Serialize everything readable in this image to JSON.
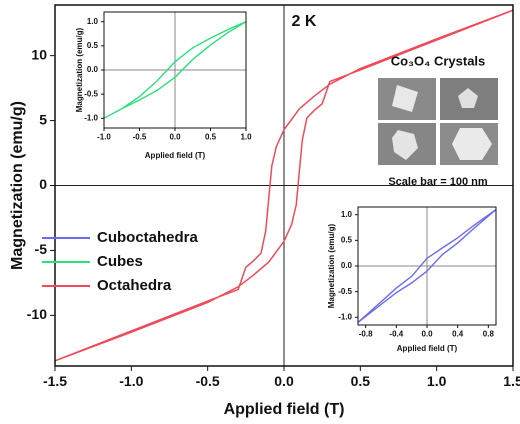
{
  "chart_data": [
    {
      "type": "line",
      "xlabel": "Applied field (T)",
      "ylabel": "Magnetization (emu/g)",
      "xlim": [
        -1.5,
        1.5
      ],
      "ylim": [
        -13.9,
        13.9
      ],
      "xticks": [
        -1.5,
        {
          "value": -1,
          "label": "-1.0"
        },
        -0.5,
        {
          "value": 0,
          "label": "0.0"
        },
        0.5,
        {
          "value": 1,
          "label": "1.0"
        },
        1.5
      ],
      "yticks": [
        -10,
        -5,
        0,
        5,
        10
      ],
      "zero_lines": true,
      "annotations": [
        "2 K",
        "Co₃O₄ Crystals",
        "Scale bar = 100 nm"
      ],
      "series": [
        {
          "name": "Octahedra",
          "color": "#f04a58",
          "x": [
            -1.5,
            -1.0,
            -0.5,
            -0.3,
            -0.2,
            -0.1,
            0,
            0.05,
            0.08,
            0.12,
            0.15,
            0.2,
            0.25,
            0.3,
            0.5,
            1.0,
            1.5,
            1.0,
            0.5,
            0.3,
            0.2,
            0.1,
            0,
            -0.05,
            -0.08,
            -0.12,
            -0.15,
            -0.2,
            -0.25,
            -0.3,
            -0.5,
            -1.0,
            -1.5
          ],
          "values": [
            -13.5,
            -11.3,
            -9.0,
            -7.8,
            -6.9,
            -5.9,
            -4.3,
            -3.0,
            -1.5,
            3.5,
            5.2,
            5.8,
            6.3,
            8.0,
            8.9,
            11.2,
            13.5,
            11.3,
            9.0,
            7.8,
            6.9,
            5.9,
            4.3,
            3.0,
            1.5,
            -3.5,
            -5.2,
            -5.8,
            -6.3,
            -8.0,
            -8.9,
            -11.2,
            -13.5
          ]
        }
      ]
    },
    {
      "type": "line",
      "xlabel": "Applied field (T)",
      "ylabel": "Magnetization (emu/g)",
      "xlim": [
        -1,
        1
      ],
      "ylim": [
        -1.2,
        1.2
      ],
      "xticks": [
        {
          "value": -1,
          "label": "-1.0"
        },
        -0.5,
        {
          "value": 0,
          "label": "0.0"
        },
        0.5,
        {
          "value": 1,
          "label": "1.0"
        }
      ],
      "yticks": [
        {
          "value": -1,
          "label": "-1.0"
        },
        -0.5,
        {
          "value": 0,
          "label": "0.0"
        },
        0.5,
        {
          "value": 1,
          "label": "1.0"
        }
      ],
      "zero_lines": true,
      "series": [
        {
          "name": "Cubes",
          "color": "#2ee07a",
          "x": [
            -1,
            -0.75,
            -0.5,
            -0.25,
            0,
            0.25,
            0.5,
            0.75,
            1,
            0.75,
            0.5,
            0.25,
            0,
            -0.25,
            -0.5,
            -0.75,
            -1
          ],
          "values": [
            -1.0,
            -0.8,
            -0.62,
            -0.42,
            -0.15,
            0.22,
            0.52,
            0.78,
            1.0,
            0.84,
            0.66,
            0.46,
            0.17,
            -0.22,
            -0.55,
            -0.8,
            -1.0
          ]
        }
      ]
    },
    {
      "type": "line",
      "xlabel": "Applied field (T)",
      "ylabel": "Magnetization (emu/g)",
      "xlim": [
        -0.9,
        0.9
      ],
      "ylim": [
        -1.15,
        1.15
      ],
      "xticks": [
        -0.8,
        -0.4,
        {
          "value": 0,
          "label": "0.0"
        },
        0.4,
        0.8
      ],
      "yticks": [
        {
          "value": -1,
          "label": "-1.0"
        },
        -0.5,
        {
          "value": 0,
          "label": "0.0"
        },
        0.5,
        {
          "value": 1,
          "label": "1.0"
        }
      ],
      "zero_lines": true,
      "series": [
        {
          "name": "Cuboctahedra",
          "color": "#6b6bf0",
          "x": [
            -0.9,
            -0.6,
            -0.4,
            -0.2,
            0,
            0.2,
            0.4,
            0.6,
            0.9,
            0.6,
            0.4,
            0.2,
            0,
            -0.2,
            -0.4,
            -0.6,
            -0.9
          ],
          "values": [
            -1.1,
            -0.75,
            -0.52,
            -0.33,
            -0.1,
            0.22,
            0.45,
            0.72,
            1.1,
            0.78,
            0.55,
            0.35,
            0.15,
            -0.2,
            -0.43,
            -0.7,
            -1.1
          ]
        }
      ]
    }
  ]
}
